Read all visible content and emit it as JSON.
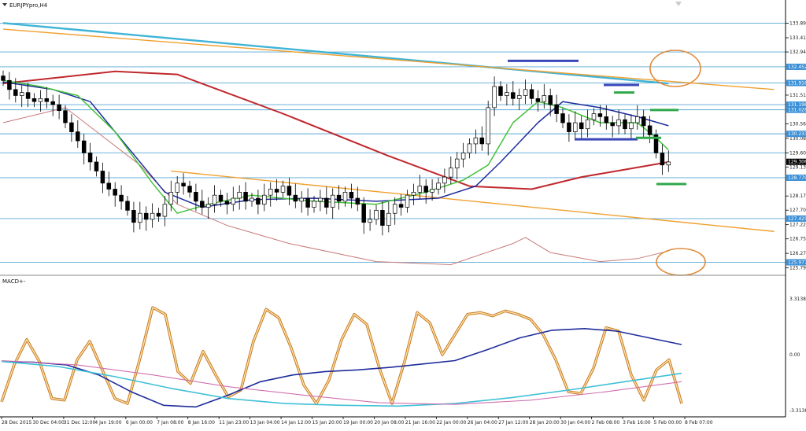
{
  "window": {
    "symbol_title": "EURJPYpro,H4",
    "indicator_title": "MACD+-"
  },
  "colors": {
    "background": "#ffffff",
    "bull": "#ffffff",
    "bear": "#000000",
    "hline": "#5aa9d6",
    "channel": "#f0a030",
    "cyan_trend": "#3fb4d6",
    "ma_red": "#c0282d",
    "ma_pink": "#c87a7a",
    "ma_blue": "#1e2c9c",
    "ma_green": "#44c23a",
    "macd_orange": "#f0a030",
    "macd_navy": "#1e2c9c",
    "macd_cyan": "#3fc0d6",
    "macd_pink": "#d070b0",
    "mark_blue": "#3a47b8",
    "mark_green": "#2fa84a",
    "circle": "#e08a3a"
  },
  "chart_data": [
    {
      "type": "candlestick",
      "title": "EURJPYpro,H4",
      "ylim": [
        125.6,
        134.3
      ],
      "y_ticks": [
        133.894,
        133.414,
        132.944,
        131.514,
        130.564,
        130.084,
        129.604,
        129.134,
        128.174,
        127.704,
        127.224,
        126.754,
        126.274,
        125.794
      ],
      "price_labels": [
        {
          "value": 132.452,
          "text": "132.452",
          "highlight": true
        },
        {
          "value": 131.916,
          "text": "131.916",
          "highlight": true
        },
        {
          "value": 131.198,
          "text": "131.198",
          "highlight": true
        },
        {
          "value": 131.028,
          "text": "131.028",
          "highlight": true
        },
        {
          "value": 130.233,
          "text": "130.233",
          "highlight": true
        },
        {
          "value": 129.306,
          "text": "129.306",
          "highlight": false,
          "current": true
        },
        {
          "value": 128.779,
          "text": "128.779",
          "highlight": true
        },
        {
          "value": 127.425,
          "text": "127.425",
          "highlight": true
        },
        {
          "value": 125.977,
          "text": "125.977",
          "highlight": true
        }
      ],
      "x_labels": [
        "28 Dec 2015",
        "30 Dec 04:00",
        "31 Dec 12:00",
        "4 Jan 19:00",
        "6 Jan 00:00",
        "7 Jan 08:00",
        "8 Jan 16:00",
        "11 Jan 23:00",
        "13 Jan 04:00",
        "14 Jan 12:00",
        "15 Jan 20:00",
        "19 Jan 00:00",
        "20 Jan 08:00",
        "21 Jan 16:00",
        "22 Jan 00:00",
        "26 Jan 04:00",
        "27 Jan 12:00",
        "28 Jan 20:00",
        "30 Jan 04:00",
        "2 Feb 08:00",
        "3 Feb 16:00",
        "5 Feb 00:00",
        "8 Feb 07:00"
      ],
      "horizontal_levels": [
        133.894,
        132.944,
        132.452,
        131.916,
        131.198,
        131.028,
        130.233,
        129.604,
        128.779,
        127.425,
        125.977
      ],
      "close": [
        132.0,
        131.7,
        131.5,
        131.6,
        131.4,
        131.3,
        131.4,
        131.3,
        131.2,
        131.0,
        130.6,
        130.3,
        130.0,
        129.6,
        129.3,
        129.0,
        128.6,
        128.4,
        128.2,
        128.0,
        127.7,
        127.3,
        127.6,
        127.4,
        127.6,
        127.5,
        127.9,
        128.3,
        128.6,
        128.5,
        128.3,
        128.0,
        127.8,
        127.9,
        128.2,
        128.0,
        127.9,
        128.1,
        128.3,
        128.0,
        128.1,
        127.9,
        128.2,
        128.4,
        128.3,
        128.5,
        128.2,
        128.0,
        128.1,
        127.8,
        128.0,
        128.1,
        127.8,
        128.2,
        128.0,
        128.3,
        128.1,
        127.9,
        127.3,
        127.4,
        127.7,
        127.2,
        127.6,
        127.9,
        127.8,
        128.2,
        128.3,
        128.5,
        128.3,
        128.4,
        128.6,
        128.8,
        129.1,
        129.4,
        129.6,
        129.9,
        130.1,
        129.9,
        131.1,
        131.8,
        131.5,
        131.6,
        131.4,
        131.5,
        131.7,
        131.4,
        131.3,
        131.5,
        131.2,
        130.9,
        130.6,
        130.3,
        130.6,
        130.4,
        130.7,
        130.9,
        130.8,
        130.6,
        130.5,
        130.7,
        130.4,
        130.6,
        130.8,
        130.5,
        130.2,
        129.6,
        129.2,
        129.3
      ],
      "series": [
        {
          "name": "",
          "color": "ma_red",
          "points": [
            [
              0,
              131.9
            ],
            [
              18,
              132.3
            ],
            [
              28,
              132.2
            ],
            [
              45,
              130.9
            ],
            [
              62,
              129.5
            ],
            [
              75,
              128.5
            ],
            [
              85,
              128.4
            ],
            [
              93,
              128.8
            ],
            [
              100,
              129.05
            ],
            [
              107,
              129.3
            ]
          ]
        },
        {
          "name": "",
          "color": "ma_pink",
          "points": [
            [
              0,
              130.6
            ],
            [
              10,
              131.1
            ],
            [
              22,
              129.2
            ],
            [
              28,
              127.9
            ],
            [
              36,
              127.2
            ],
            [
              46,
              126.6
            ],
            [
              60,
              126.0
            ],
            [
              72,
              125.9
            ],
            [
              82,
              126.6
            ],
            [
              84,
              126.8
            ],
            [
              88,
              126.3
            ],
            [
              96,
              126.0
            ],
            [
              102,
              126.1
            ],
            [
              107,
              126.35
            ]
          ]
        },
        {
          "name": "",
          "color": "ma_blue",
          "points": [
            [
              0,
              131.95
            ],
            [
              8,
              131.7
            ],
            [
              14,
              131.3
            ],
            [
              20,
              129.8
            ],
            [
              26,
              128.3
            ],
            [
              32,
              127.8
            ],
            [
              40,
              128.05
            ],
            [
              50,
              128.1
            ],
            [
              60,
              128.0
            ],
            [
              70,
              128.1
            ],
            [
              76,
              128.5
            ],
            [
              80,
              129.3
            ],
            [
              86,
              130.6
            ],
            [
              90,
              131.3
            ],
            [
              96,
              131.1
            ],
            [
              102,
              130.8
            ],
            [
              107,
              130.5
            ]
          ]
        },
        {
          "name": "",
          "color": "ma_green",
          "points": [
            [
              0,
              132.0
            ],
            [
              6,
              131.8
            ],
            [
              12,
              131.5
            ],
            [
              18,
              130.3
            ],
            [
              24,
              128.6
            ],
            [
              28,
              127.6
            ],
            [
              33,
              127.9
            ],
            [
              40,
              128.2
            ],
            [
              50,
              128.0
            ],
            [
              60,
              127.9
            ],
            [
              68,
              128.3
            ],
            [
              74,
              128.7
            ],
            [
              78,
              129.2
            ],
            [
              82,
              130.6
            ],
            [
              86,
              131.3
            ],
            [
              90,
              131.1
            ],
            [
              96,
              130.6
            ],
            [
              102,
              130.6
            ],
            [
              105,
              130.1
            ],
            [
              107,
              129.7
            ]
          ]
        }
      ],
      "trendlines": [
        {
          "name": "",
          "color": "cyan_trend",
          "from": [
            0,
            133.9
          ],
          "to": [
            107,
            131.9
          ]
        },
        {
          "name": "",
          "color": "channel",
          "from": [
            0,
            133.7
          ],
          "to": [
            124,
            131.7
          ]
        },
        {
          "name": "",
          "color": "channel",
          "from": [
            27,
            129.0
          ],
          "to": [
            124,
            127.0
          ]
        }
      ]
    },
    {
      "type": "line",
      "title": "MACD+-",
      "ylim": [
        -3.3138,
        3.3138
      ],
      "y_ticks": [
        3.3138,
        0.0,
        -3.3138
      ],
      "y_tick_labels": [
        "3.3138",
        "0.00",
        "-3.3138"
      ],
      "series": [
        {
          "name": "",
          "color": "macd_orange",
          "values": [
            -2.8,
            -0.6,
            0.9,
            -0.4,
            -2.6,
            -2.7,
            -0.3,
            0.8,
            -0.9,
            -2.6,
            -2.9,
            -0.2,
            2.8,
            2.4,
            -1.0,
            -1.7,
            0.2,
            -1.2,
            -2.5,
            -2.1,
            0.8,
            2.7,
            2.2,
            0.4,
            -1.8,
            -2.9,
            -1.5,
            0.9,
            2.4,
            1.8,
            -0.8,
            -2.9,
            -0.4,
            2.5,
            1.9,
            0.0,
            1.2,
            2.4,
            2.5,
            2.3,
            2.6,
            2.4,
            2.1,
            1.2,
            -0.3,
            -2.2,
            -2.3,
            -0.8,
            1.6,
            1.4,
            -1.2,
            -2.7,
            -0.9,
            -0.3,
            -2.9
          ]
        },
        {
          "name": "",
          "color": "macd_navy",
          "values": [
            -0.4,
            -0.45,
            -0.6,
            -1.2,
            -2.2,
            -3.0,
            -3.1,
            -2.4,
            -1.6,
            -1.2,
            -1.0,
            -0.9,
            -0.75,
            -0.55,
            -0.35,
            0.3,
            1.0,
            1.45,
            1.55,
            1.4,
            1.0,
            0.6
          ]
        },
        {
          "name": "",
          "color": "macd_cyan",
          "values": [
            -0.4,
            -0.7,
            -1.3,
            -2.0,
            -2.6,
            -2.9,
            -3.0,
            -3.05,
            -2.9,
            -2.55,
            -2.1,
            -1.6,
            -1.1
          ]
        },
        {
          "name": "",
          "color": "macd_pink",
          "values": [
            -0.35,
            -0.6,
            -1.2,
            -1.9,
            -2.4,
            -2.85,
            -2.95,
            -2.7,
            -2.2,
            -1.6
          ]
        }
      ]
    }
  ]
}
